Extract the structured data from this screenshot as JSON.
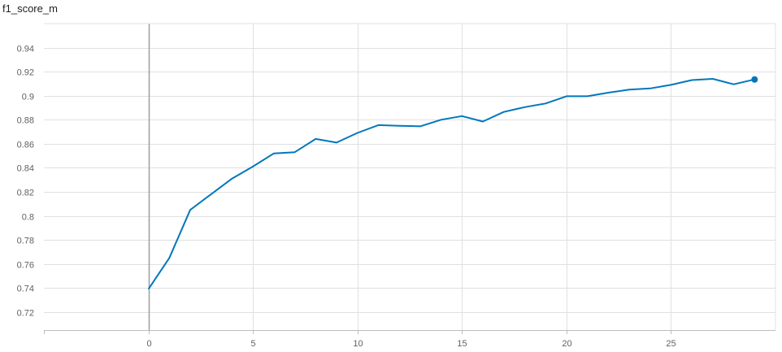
{
  "chart_data": {
    "type": "line",
    "title": "f1_score_m",
    "xlabel": "",
    "ylabel": "",
    "xlim": [
      -5,
      30
    ],
    "ylim": [
      0.705,
      0.96
    ],
    "x_ticks": [
      0,
      5,
      10,
      15,
      20,
      25
    ],
    "y_ticks": [
      0.72,
      0.74,
      0.76,
      0.78,
      0.8,
      0.82,
      0.84,
      0.86,
      0.88,
      0.9,
      0.92,
      0.94
    ],
    "y_tick_labels": [
      "0.72",
      "0.74",
      "0.76",
      "0.78",
      "0.8",
      "0.82",
      "0.84",
      "0.86",
      "0.88",
      "0.9",
      "0.92",
      "0.94"
    ],
    "x_tick_labels": [
      "0",
      "5",
      "10",
      "15",
      "20",
      "25"
    ],
    "grid": true,
    "series": [
      {
        "x": [
          0,
          1,
          2,
          3,
          4,
          5,
          6,
          7,
          8,
          9,
          10,
          11,
          12,
          13,
          14,
          15,
          16,
          17,
          18,
          19,
          20,
          21,
          22,
          23,
          24,
          25,
          26,
          27,
          28,
          29
        ],
        "values": [
          0.739,
          0.765,
          0.805,
          0.818,
          0.831,
          0.841,
          0.852,
          0.853,
          0.864,
          0.861,
          0.869,
          0.8755,
          0.875,
          0.8745,
          0.88,
          0.883,
          0.8785,
          0.8865,
          0.8905,
          0.8935,
          0.8995,
          0.8995,
          0.9025,
          0.905,
          0.906,
          0.909,
          0.913,
          0.914,
          0.9095,
          0.9135
        ],
        "color": "#0277bd"
      }
    ]
  }
}
